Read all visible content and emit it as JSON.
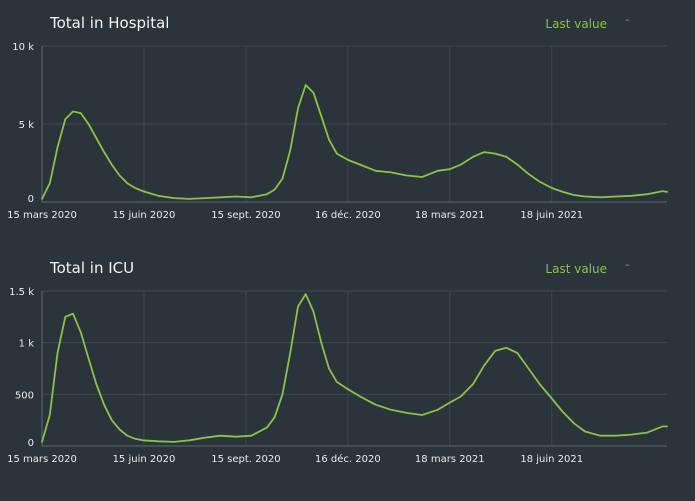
{
  "chart_data": [
    {
      "type": "line",
      "title": "Total in Hospital",
      "legend": {
        "label": "Last value",
        "value": "-",
        "placement": "top-right"
      },
      "color": "#8bc34a",
      "grid": true,
      "ylim": [
        0,
        10000
      ],
      "yticks": [
        0,
        5000,
        10000
      ],
      "ytick_labels": [
        "0",
        "5 k",
        "10 k"
      ],
      "xlim": [
        "2020-03-15",
        "2021-09-30"
      ],
      "xticks": [
        "2020-03-15",
        "2020-06-15",
        "2020-09-15",
        "2020-12-16",
        "2021-03-18",
        "2021-06-18"
      ],
      "xtick_labels": [
        "15 mars 2020",
        "15 juin 2020",
        "15 sept. 2020",
        "16 déc. 2020",
        "18 mars 2021",
        "18 juin 2021"
      ],
      "series": [
        {
          "x": [
            "2020-03-15",
            "2020-03-22",
            "2020-03-29",
            "2020-04-05",
            "2020-04-12",
            "2020-04-19",
            "2020-04-26",
            "2020-05-03",
            "2020-05-10",
            "2020-05-17",
            "2020-05-24",
            "2020-05-31",
            "2020-06-07",
            "2020-06-14",
            "2020-06-28",
            "2020-07-12",
            "2020-07-26",
            "2020-08-09",
            "2020-08-23",
            "2020-09-06",
            "2020-09-20",
            "2020-10-04",
            "2020-10-11",
            "2020-10-18",
            "2020-10-25",
            "2020-11-01",
            "2020-11-08",
            "2020-11-15",
            "2020-11-22",
            "2020-11-29",
            "2020-12-06",
            "2020-12-16",
            "2020-12-27",
            "2021-01-10",
            "2021-01-24",
            "2021-02-07",
            "2021-02-21",
            "2021-03-07",
            "2021-03-18",
            "2021-03-28",
            "2021-04-08",
            "2021-04-18",
            "2021-04-28",
            "2021-05-08",
            "2021-05-18",
            "2021-05-28",
            "2021-06-07",
            "2021-06-18",
            "2021-06-28",
            "2021-07-08",
            "2021-07-18",
            "2021-08-01",
            "2021-08-15",
            "2021-08-29",
            "2021-09-12",
            "2021-09-26",
            "2021-09-30"
          ],
          "values": [
            200,
            1200,
            3500,
            5300,
            5800,
            5700,
            5000,
            4100,
            3200,
            2400,
            1700,
            1200,
            900,
            700,
            400,
            250,
            200,
            250,
            300,
            350,
            300,
            500,
            800,
            1500,
            3300,
            6000,
            7500,
            7000,
            5500,
            4000,
            3100,
            2700,
            2400,
            2000,
            1900,
            1700,
            1600,
            2000,
            2100,
            2400,
            2900,
            3200,
            3100,
            2900,
            2400,
            1800,
            1300,
            900,
            650,
            450,
            350,
            300,
            350,
            400,
            500,
            700,
            650
          ]
        }
      ]
    },
    {
      "type": "line",
      "title": "Total in ICU",
      "legend": {
        "label": "Last value",
        "value": "-",
        "placement": "top-right"
      },
      "color": "#8bc34a",
      "grid": true,
      "ylim": [
        0,
        1500
      ],
      "yticks": [
        0,
        500,
        1000,
        1500
      ],
      "ytick_labels": [
        "0",
        "500",
        "1 k",
        "1.5 k"
      ],
      "xlim": [
        "2020-03-15",
        "2021-09-30"
      ],
      "xticks": [
        "2020-03-15",
        "2020-06-15",
        "2020-09-15",
        "2020-12-16",
        "2021-03-18",
        "2021-06-18"
      ],
      "xtick_labels": [
        "15 mars 2020",
        "15 juin 2020",
        "15 sept. 2020",
        "16 déc. 2020",
        "18 mars 2021",
        "18 juin 2021"
      ],
      "series": [
        {
          "x": [
            "2020-03-15",
            "2020-03-22",
            "2020-03-29",
            "2020-04-05",
            "2020-04-12",
            "2020-04-19",
            "2020-04-26",
            "2020-05-03",
            "2020-05-10",
            "2020-05-17",
            "2020-05-24",
            "2020-05-31",
            "2020-06-07",
            "2020-06-14",
            "2020-06-28",
            "2020-07-12",
            "2020-07-26",
            "2020-08-09",
            "2020-08-23",
            "2020-09-06",
            "2020-09-20",
            "2020-10-04",
            "2020-10-11",
            "2020-10-18",
            "2020-10-25",
            "2020-11-01",
            "2020-11-08",
            "2020-11-15",
            "2020-11-22",
            "2020-11-29",
            "2020-12-06",
            "2020-12-16",
            "2020-12-27",
            "2021-01-10",
            "2021-01-24",
            "2021-02-07",
            "2021-02-21",
            "2021-03-07",
            "2021-03-18",
            "2021-03-28",
            "2021-04-08",
            "2021-04-18",
            "2021-04-28",
            "2021-05-08",
            "2021-05-18",
            "2021-05-28",
            "2021-06-07",
            "2021-06-18",
            "2021-06-28",
            "2021-07-08",
            "2021-07-18",
            "2021-08-01",
            "2021-08-15",
            "2021-08-29",
            "2021-09-12",
            "2021-09-26",
            "2021-09-30"
          ],
          "values": [
            40,
            300,
            900,
            1250,
            1280,
            1100,
            850,
            600,
            400,
            250,
            160,
            100,
            70,
            55,
            45,
            40,
            55,
            80,
            100,
            90,
            100,
            180,
            280,
            500,
            900,
            1350,
            1470,
            1300,
            1000,
            750,
            620,
            550,
            480,
            400,
            350,
            320,
            300,
            350,
            420,
            480,
            600,
            780,
            920,
            950,
            900,
            750,
            600,
            460,
            330,
            220,
            140,
            100,
            100,
            110,
            130,
            190,
            190
          ]
        }
      ]
    }
  ]
}
